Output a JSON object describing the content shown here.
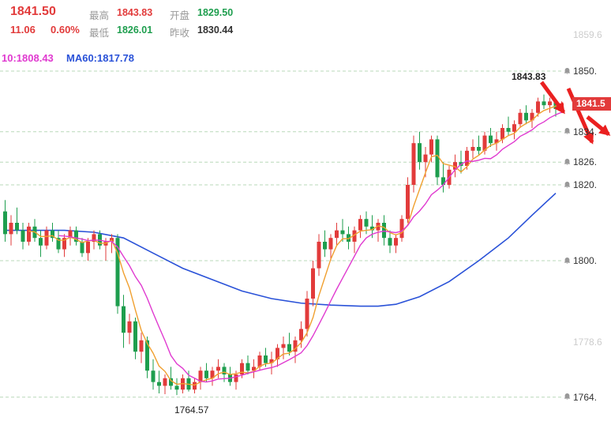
{
  "colors": {
    "up": "#e23b3b",
    "down": "#1e9e4e",
    "ma5": "#f0a030",
    "ma10": "#e03ad0",
    "ma60": "#2a52d8",
    "grid": "#b9d8b9",
    "annotation": "#ea2020"
  },
  "header": {
    "price": "1841.50",
    "change": "11.06",
    "change_pct": "0.60%",
    "high_label": "最高",
    "high": "1843.83",
    "open_label": "开盘",
    "open": "1829.50",
    "low_label": "最低",
    "low": "1826.01",
    "prev_label": "昨收",
    "prev": "1830.44",
    "ma10_text": "10:1808.43",
    "ma60_text": "MA60:1817.78"
  },
  "annotations": {
    "high_point_label": "1843.83",
    "low_point_label": "1764.57",
    "current_price_badge": "1841.5"
  },
  "axis": {
    "labels": [
      {
        "text": "1859.6",
        "price": 1859.6,
        "bell": false,
        "muted": true
      },
      {
        "text": "1850.",
        "price": 1850,
        "bell": true,
        "muted": false
      },
      {
        "text": "1834.",
        "price": 1834,
        "bell": true,
        "muted": false
      },
      {
        "text": "1826.",
        "price": 1826,
        "bell": true,
        "muted": false
      },
      {
        "text": "1820.",
        "price": 1820,
        "bell": true,
        "muted": false
      },
      {
        "text": "1800.",
        "price": 1800,
        "bell": true,
        "muted": false
      },
      {
        "text": "1778.6",
        "price": 1778.6,
        "bell": false,
        "muted": true
      },
      {
        "text": "1764.",
        "price": 1764,
        "bell": true,
        "muted": false
      }
    ]
  },
  "chart_data": {
    "type": "candlestick",
    "title": "",
    "ylabel": "price",
    "ylim": [
      1757,
      1869
    ],
    "overlays": [
      "MA5",
      "MA10",
      "MA60"
    ],
    "gridline_prices": [
      1850,
      1834,
      1826,
      1820,
      1800,
      1764
    ],
    "ohlc": [
      [
        1813,
        1816,
        1805,
        1807
      ],
      [
        1807,
        1812,
        1804,
        1810
      ],
      [
        1810,
        1814,
        1807,
        1808
      ],
      [
        1808,
        1810,
        1803,
        1805
      ],
      [
        1805,
        1810,
        1804,
        1809
      ],
      [
        1809,
        1811,
        1805,
        1806
      ],
      [
        1806,
        1808,
        1801,
        1804
      ],
      [
        1804,
        1809,
        1803,
        1808
      ],
      [
        1808,
        1810,
        1805,
        1806
      ],
      [
        1806,
        1808,
        1802,
        1803
      ],
      [
        1803,
        1807,
        1801,
        1806
      ],
      [
        1806,
        1809,
        1804,
        1808
      ],
      [
        1808,
        1809,
        1804,
        1805
      ],
      [
        1805,
        1806,
        1801,
        1802
      ],
      [
        1802,
        1806,
        1800,
        1805
      ],
      [
        1805,
        1808,
        1803,
        1807
      ],
      [
        1807,
        1808,
        1803,
        1804
      ],
      [
        1804,
        1806,
        1800,
        1805
      ],
      [
        1805,
        1807,
        1802,
        1806
      ],
      [
        1806,
        1807,
        1786,
        1788
      ],
      [
        1788,
        1791,
        1777,
        1781
      ],
      [
        1781,
        1786,
        1778,
        1784
      ],
      [
        1784,
        1785,
        1774,
        1776
      ],
      [
        1776,
        1781,
        1773,
        1779
      ],
      [
        1779,
        1780,
        1769,
        1771
      ],
      [
        1771,
        1774,
        1766,
        1768
      ],
      [
        1768,
        1771,
        1765,
        1767
      ],
      [
        1767,
        1770,
        1764.8,
        1769
      ],
      [
        1769,
        1772,
        1766,
        1767
      ],
      [
        1767,
        1769,
        1764.57,
        1766
      ],
      [
        1766,
        1770,
        1765,
        1769
      ],
      [
        1769,
        1771,
        1765.5,
        1766
      ],
      [
        1766,
        1769,
        1765,
        1768
      ],
      [
        1768,
        1772,
        1766,
        1771
      ],
      [
        1771,
        1773,
        1768,
        1769
      ],
      [
        1769,
        1772,
        1767,
        1771
      ],
      [
        1771,
        1774,
        1769,
        1772
      ],
      [
        1772,
        1773,
        1768,
        1770
      ],
      [
        1770,
        1772,
        1767,
        1768
      ],
      [
        1768,
        1771,
        1766,
        1770
      ],
      [
        1770,
        1774,
        1769,
        1773
      ],
      [
        1773,
        1775,
        1770,
        1771
      ],
      [
        1771,
        1774,
        1769,
        1772
      ],
      [
        1772,
        1776,
        1771,
        1775
      ],
      [
        1775,
        1777,
        1772,
        1773
      ],
      [
        1773,
        1776,
        1770,
        1774
      ],
      [
        1774,
        1778,
        1772,
        1777
      ],
      [
        1777,
        1780,
        1774,
        1778
      ],
      [
        1778,
        1781,
        1775,
        1776
      ],
      [
        1776,
        1780,
        1773,
        1779
      ],
      [
        1779,
        1784,
        1777,
        1782
      ],
      [
        1782,
        1792,
        1780,
        1790
      ],
      [
        1790,
        1800,
        1788,
        1798
      ],
      [
        1798,
        1807,
        1796,
        1805
      ],
      [
        1805,
        1808,
        1801,
        1803
      ],
      [
        1803,
        1807,
        1800,
        1806
      ],
      [
        1806,
        1810,
        1804,
        1808
      ],
      [
        1808,
        1811,
        1805,
        1807
      ],
      [
        1807,
        1809,
        1803,
        1805
      ],
      [
        1805,
        1809,
        1802,
        1808
      ],
      [
        1808,
        1812,
        1806,
        1811
      ],
      [
        1811,
        1813,
        1807,
        1809
      ],
      [
        1809,
        1812,
        1806,
        1808
      ],
      [
        1808,
        1811,
        1805,
        1810
      ],
      [
        1810,
        1812,
        1804,
        1806
      ],
      [
        1806,
        1808,
        1802,
        1804
      ],
      [
        1804,
        1807,
        1802,
        1806
      ],
      [
        1806,
        1812,
        1805,
        1811
      ],
      [
        1811,
        1822,
        1810,
        1820
      ],
      [
        1820,
        1833,
        1818,
        1831
      ],
      [
        1831,
        1834,
        1824,
        1826
      ],
      [
        1826,
        1830,
        1822,
        1828
      ],
      [
        1828,
        1833,
        1826,
        1832
      ],
      [
        1832,
        1833,
        1820,
        1822
      ],
      [
        1822,
        1826,
        1818,
        1820
      ],
      [
        1820,
        1825,
        1819,
        1824
      ],
      [
        1824,
        1828,
        1822,
        1826
      ],
      [
        1826,
        1829,
        1823,
        1825
      ],
      [
        1825,
        1830,
        1824,
        1829
      ],
      [
        1829,
        1832,
        1827,
        1830
      ],
      [
        1830,
        1833,
        1828,
        1829
      ],
      [
        1829,
        1834,
        1828,
        1833
      ],
      [
        1833,
        1835,
        1830,
        1831
      ],
      [
        1831,
        1834,
        1829,
        1832
      ],
      [
        1832,
        1836,
        1831,
        1835
      ],
      [
        1835,
        1838,
        1833,
        1834
      ],
      [
        1834,
        1837,
        1832,
        1836
      ],
      [
        1836,
        1840,
        1835,
        1839
      ],
      [
        1839,
        1841,
        1836,
        1837
      ],
      [
        1837,
        1840,
        1835,
        1839
      ],
      [
        1839,
        1843,
        1838,
        1842
      ],
      [
        1842,
        1843.83,
        1840,
        1841
      ],
      [
        1841,
        1843,
        1839,
        1842
      ],
      [
        1842,
        1842.5,
        1838,
        1840
      ],
      [
        1840,
        1842,
        1839,
        1841.5
      ]
    ],
    "ma60_line": [
      [
        0,
        1808
      ],
      [
        10,
        1808
      ],
      [
        15,
        1807.5
      ],
      [
        20,
        1806
      ],
      [
        25,
        1802
      ],
      [
        30,
        1798
      ],
      [
        35,
        1795
      ],
      [
        40,
        1792
      ],
      [
        45,
        1790
      ],
      [
        50,
        1788.8
      ],
      [
        55,
        1788.3
      ],
      [
        60,
        1788
      ],
      [
        63,
        1788
      ],
      [
        66,
        1788.5
      ],
      [
        70,
        1790.5
      ],
      [
        75,
        1794.5
      ],
      [
        80,
        1800
      ],
      [
        85,
        1806
      ],
      [
        89,
        1812
      ],
      [
        93,
        1817.8
      ]
    ],
    "annotations": {
      "arrows": [
        [
          686,
          104,
          714,
          142
        ],
        [
          720,
          112,
          750,
          180
        ],
        [
          744,
          148,
          771,
          170
        ]
      ]
    }
  }
}
